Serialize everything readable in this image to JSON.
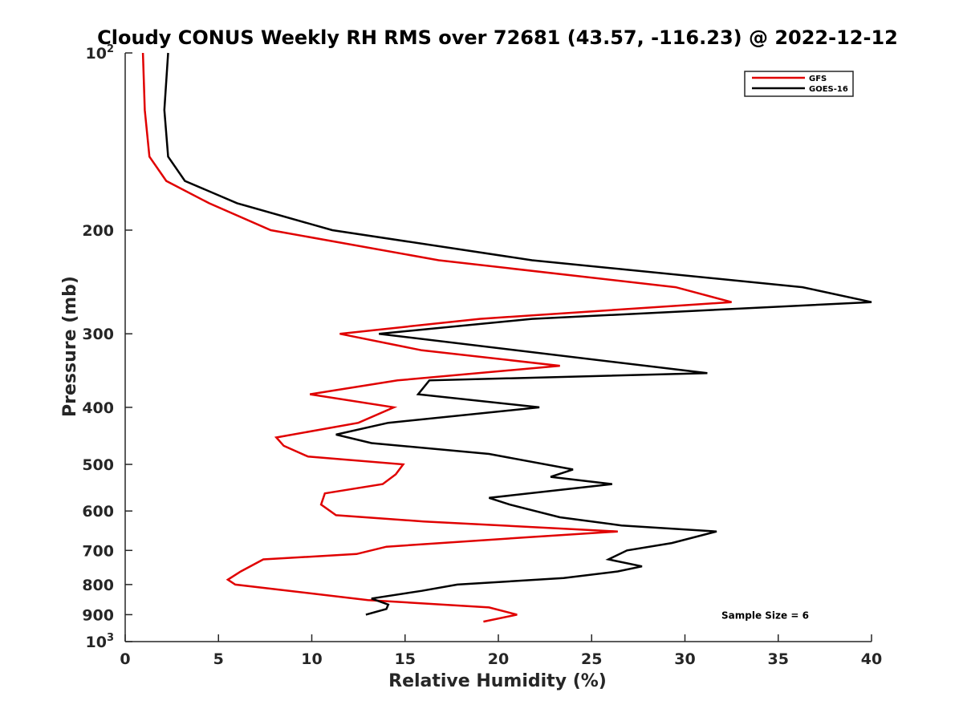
{
  "chart_data": {
    "type": "line",
    "title": "Cloudy CONUS Weekly RH RMS over 72681 (43.57, -116.23) @ 2022-12-12",
    "xlabel": "Relative Humidity (%)",
    "ylabel": "Pressure (mb)",
    "xlim": [
      0,
      40
    ],
    "ylim": [
      100,
      1000
    ],
    "y_scale": "log",
    "y_reversed": true,
    "grid": false,
    "legend_position": "top-right",
    "x_ticks": [
      0,
      5,
      10,
      15,
      20,
      25,
      30,
      35,
      40
    ],
    "y_ticks": [
      {
        "value": 100,
        "label": "10",
        "sup": "2"
      },
      {
        "value": 200,
        "label": "200",
        "sup": ""
      },
      {
        "value": 300,
        "label": "300",
        "sup": ""
      },
      {
        "value": 400,
        "label": "400",
        "sup": ""
      },
      {
        "value": 500,
        "label": "500",
        "sup": ""
      },
      {
        "value": 600,
        "label": "600",
        "sup": ""
      },
      {
        "value": 700,
        "label": "700",
        "sup": ""
      },
      {
        "value": 800,
        "label": "800",
        "sup": ""
      },
      {
        "value": 900,
        "label": "900",
        "sup": ""
      },
      {
        "value": 1000,
        "label": "10",
        "sup": "3"
      }
    ],
    "series": [
      {
        "name": "GFS",
        "color": "#e00000",
        "points": [
          {
            "x": 0.95,
            "y": 100
          },
          {
            "x": 1.05,
            "y": 125
          },
          {
            "x": 1.3,
            "y": 150
          },
          {
            "x": 2.2,
            "y": 165
          },
          {
            "x": 4.5,
            "y": 180
          },
          {
            "x": 7.8,
            "y": 200
          },
          {
            "x": 16.8,
            "y": 225
          },
          {
            "x": 29.5,
            "y": 250
          },
          {
            "x": 32.5,
            "y": 265
          },
          {
            "x": 19.0,
            "y": 283
          },
          {
            "x": 11.5,
            "y": 300
          },
          {
            "x": 15.9,
            "y": 320
          },
          {
            "x": 23.3,
            "y": 340
          },
          {
            "x": 14.6,
            "y": 360
          },
          {
            "x": 9.9,
            "y": 380
          },
          {
            "x": 14.4,
            "y": 400
          },
          {
            "x": 12.5,
            "y": 425
          },
          {
            "x": 8.1,
            "y": 450
          },
          {
            "x": 8.5,
            "y": 465
          },
          {
            "x": 9.8,
            "y": 485
          },
          {
            "x": 14.9,
            "y": 500
          },
          {
            "x": 14.5,
            "y": 520
          },
          {
            "x": 13.8,
            "y": 540
          },
          {
            "x": 10.7,
            "y": 560
          },
          {
            "x": 10.5,
            "y": 585
          },
          {
            "x": 11.3,
            "y": 610
          },
          {
            "x": 16.0,
            "y": 625
          },
          {
            "x": 26.4,
            "y": 650
          },
          {
            "x": 21.5,
            "y": 665
          },
          {
            "x": 14.0,
            "y": 690
          },
          {
            "x": 12.4,
            "y": 710
          },
          {
            "x": 7.4,
            "y": 725
          },
          {
            "x": 6.2,
            "y": 760
          },
          {
            "x": 5.5,
            "y": 785
          },
          {
            "x": 5.9,
            "y": 800
          },
          {
            "x": 13.0,
            "y": 850
          },
          {
            "x": 19.5,
            "y": 875
          },
          {
            "x": 21.0,
            "y": 900
          },
          {
            "x": 19.2,
            "y": 925
          }
        ]
      },
      {
        "name": "GOES-16",
        "color": "#000000",
        "points": [
          {
            "x": 2.3,
            "y": 100
          },
          {
            "x": 2.1,
            "y": 125
          },
          {
            "x": 2.3,
            "y": 150
          },
          {
            "x": 3.2,
            "y": 165
          },
          {
            "x": 6.0,
            "y": 180
          },
          {
            "x": 11.1,
            "y": 200
          },
          {
            "x": 21.8,
            "y": 225
          },
          {
            "x": 36.3,
            "y": 250
          },
          {
            "x": 40.0,
            "y": 265
          },
          {
            "x": 21.8,
            "y": 283
          },
          {
            "x": 13.6,
            "y": 300
          },
          {
            "x": 31.2,
            "y": 350
          },
          {
            "x": 16.3,
            "y": 360
          },
          {
            "x": 15.7,
            "y": 380
          },
          {
            "x": 22.2,
            "y": 400
          },
          {
            "x": 14.1,
            "y": 425
          },
          {
            "x": 11.3,
            "y": 445
          },
          {
            "x": 13.2,
            "y": 460
          },
          {
            "x": 19.5,
            "y": 480
          },
          {
            "x": 24.0,
            "y": 510
          },
          {
            "x": 22.8,
            "y": 525
          },
          {
            "x": 26.1,
            "y": 540
          },
          {
            "x": 19.5,
            "y": 570
          },
          {
            "x": 20.6,
            "y": 585
          },
          {
            "x": 23.3,
            "y": 615
          },
          {
            "x": 26.6,
            "y": 635
          },
          {
            "x": 31.7,
            "y": 650
          },
          {
            "x": 29.3,
            "y": 680
          },
          {
            "x": 26.9,
            "y": 700
          },
          {
            "x": 25.9,
            "y": 725
          },
          {
            "x": 27.7,
            "y": 745
          },
          {
            "x": 26.4,
            "y": 760
          },
          {
            "x": 23.5,
            "y": 780
          },
          {
            "x": 17.8,
            "y": 800
          },
          {
            "x": 15.9,
            "y": 820
          },
          {
            "x": 13.2,
            "y": 845
          },
          {
            "x": 14.1,
            "y": 865
          },
          {
            "x": 14.0,
            "y": 880
          },
          {
            "x": 12.9,
            "y": 900
          }
        ]
      }
    ],
    "annotations": [
      {
        "text": "Sample Size = 6",
        "x": 34.3,
        "y": 900
      }
    ]
  }
}
